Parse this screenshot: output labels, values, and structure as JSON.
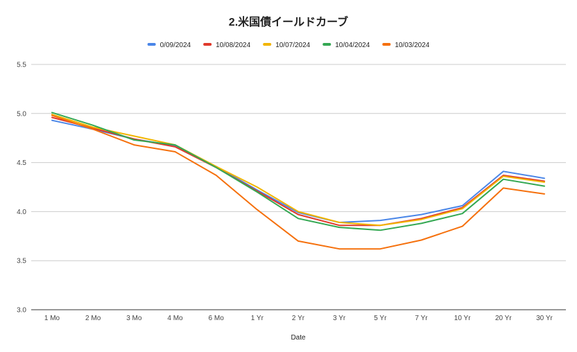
{
  "chart_data": {
    "type": "line",
    "title": "2.米国債イールドカーブ",
    "xlabel": "Date",
    "ylabel": "",
    "categories": [
      "1 Mo",
      "2 Mo",
      "3 Mo",
      "4 Mo",
      "6 Mo",
      "1 Yr",
      "2 Yr",
      "3 Yr",
      "5 Yr",
      "7 Yr",
      "10 Yr",
      "20 Yr",
      "30 Yr"
    ],
    "ylim": [
      3.0,
      5.5
    ],
    "yticks": [
      "3.0",
      "3.5",
      "4.0",
      "4.5",
      "5.0",
      "5.5"
    ],
    "grid": "horizontal",
    "legend_position": "top",
    "series": [
      {
        "name": "0/09/2024",
        "color": "#4a86e8",
        "values": [
          4.93,
          4.84,
          4.74,
          4.67,
          4.46,
          4.22,
          3.99,
          3.89,
          3.91,
          3.97,
          4.06,
          4.41,
          4.34
        ]
      },
      {
        "name": "10/08/2024",
        "color": "#e0392b",
        "values": [
          4.96,
          4.85,
          4.74,
          4.66,
          4.45,
          4.21,
          3.97,
          3.86,
          3.86,
          3.93,
          4.04,
          4.37,
          4.31
        ]
      },
      {
        "name": "10/07/2024",
        "color": "#f2b500",
        "values": [
          4.99,
          4.86,
          4.77,
          4.68,
          4.46,
          4.25,
          4.0,
          3.89,
          3.86,
          3.92,
          4.03,
          4.36,
          4.3
        ]
      },
      {
        "name": "10/04/2024",
        "color": "#34a853",
        "values": [
          5.01,
          4.88,
          4.73,
          4.68,
          4.45,
          4.2,
          3.93,
          3.84,
          3.81,
          3.88,
          3.98,
          4.33,
          4.26
        ]
      },
      {
        "name": "10/03/2024",
        "color": "#f5700c",
        "values": [
          4.98,
          4.84,
          4.68,
          4.61,
          4.37,
          4.02,
          3.7,
          3.62,
          3.62,
          3.71,
          3.85,
          4.24,
          4.18
        ]
      }
    ]
  }
}
